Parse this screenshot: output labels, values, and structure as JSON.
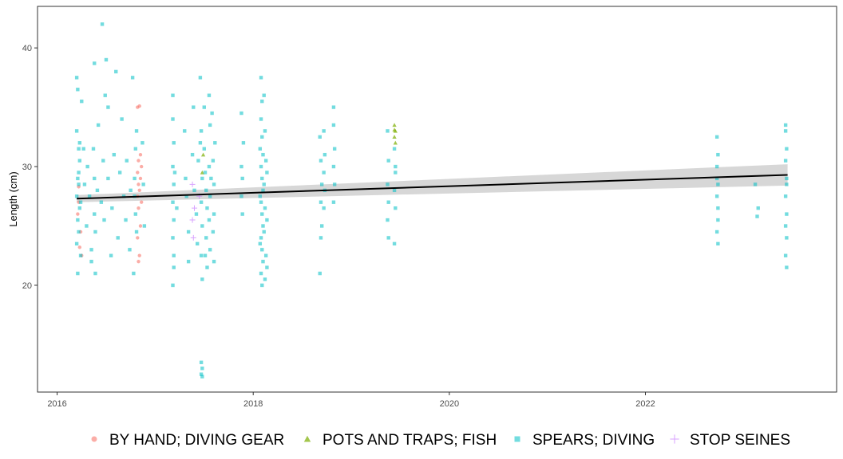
{
  "chart_data": {
    "type": "scatter",
    "title": "",
    "xlabel": "",
    "ylabel": "Length (cm)",
    "xlim": [
      2015.8,
      2023.95
    ],
    "ylim": [
      11.0,
      43.5
    ],
    "x_ticks": [
      2016,
      2018,
      2020,
      2022
    ],
    "y_ticks": [
      20,
      30,
      40
    ],
    "grid": false,
    "legend_position": "bottom",
    "trend": {
      "method": "linear",
      "line_color": "#000000",
      "band_color": "#bdbdbd",
      "x": [
        2016.2,
        2023.45
      ],
      "y": [
        27.3,
        29.3
      ],
      "lower": [
        27.0,
        28.4
      ],
      "upper": [
        27.6,
        30.2
      ]
    },
    "series": [
      {
        "name": "BY HAND; DIVING GEAR",
        "shape": "circle",
        "color": "#F8766D",
        "points": [
          [
            2016.22,
            28.3
          ],
          [
            2016.22,
            27.0
          ],
          [
            2016.24,
            24.5
          ],
          [
            2016.23,
            23.2
          ],
          [
            2016.25,
            22.5
          ],
          [
            2016.21,
            26.0
          ],
          [
            2016.82,
            35.0
          ],
          [
            2016.84,
            35.1
          ],
          [
            2016.83,
            30.5
          ],
          [
            2016.86,
            30.0
          ],
          [
            2016.82,
            29.5
          ],
          [
            2016.85,
            29.0
          ],
          [
            2016.83,
            28.5
          ],
          [
            2016.84,
            28.0
          ],
          [
            2016.82,
            27.5
          ],
          [
            2016.86,
            27.0
          ],
          [
            2016.83,
            26.5
          ],
          [
            2016.85,
            25.0
          ],
          [
            2016.82,
            24.0
          ],
          [
            2016.84,
            22.5
          ],
          [
            2016.83,
            22.0
          ],
          [
            2016.85,
            31.0
          ]
        ]
      },
      {
        "name": "POTS AND TRAPS; FISH",
        "shape": "triangle",
        "color": "#7CAE00",
        "points": [
          [
            2019.44,
            33.5
          ],
          [
            2019.45,
            33.0
          ],
          [
            2019.44,
            32.5
          ],
          [
            2019.45,
            32.0
          ],
          [
            2019.44,
            33.1
          ],
          [
            2017.49,
            31.0
          ],
          [
            2017.48,
            29.5
          ]
        ]
      },
      {
        "name": "SPEARS; DIVING",
        "shape": "square",
        "color": "#00BFC4",
        "points": [
          [
            2016.2,
            37.5
          ],
          [
            2016.21,
            36.5
          ],
          [
            2016.25,
            35.5
          ],
          [
            2016.2,
            33.0
          ],
          [
            2016.22,
            31.5
          ],
          [
            2016.23,
            30.5
          ],
          [
            2016.21,
            29.0
          ],
          [
            2016.22,
            28.5
          ],
          [
            2016.2,
            27.5
          ],
          [
            2016.23,
            26.5
          ],
          [
            2016.21,
            25.5
          ],
          [
            2016.22,
            24.5
          ],
          [
            2016.2,
            23.5
          ],
          [
            2016.24,
            22.5
          ],
          [
            2016.21,
            21.0
          ],
          [
            2016.23,
            32.0
          ],
          [
            2016.22,
            29.5
          ],
          [
            2016.24,
            27.0
          ],
          [
            2016.27,
            31.5
          ],
          [
            2016.28,
            28.5
          ],
          [
            2016.3,
            25.0
          ],
          [
            2016.31,
            30.0
          ],
          [
            2016.33,
            27.5
          ],
          [
            2016.35,
            23.0
          ],
          [
            2016.35,
            22.0
          ],
          [
            2016.37,
            31.5
          ],
          [
            2016.38,
            26.0
          ],
          [
            2016.38,
            29.0
          ],
          [
            2016.38,
            38.7
          ],
          [
            2016.39,
            24.5
          ],
          [
            2016.39,
            21.0
          ],
          [
            2016.41,
            28.0
          ],
          [
            2016.42,
            33.5
          ],
          [
            2016.45,
            27.0
          ],
          [
            2016.46,
            42.0
          ],
          [
            2016.47,
            30.5
          ],
          [
            2016.48,
            25.5
          ],
          [
            2016.49,
            36.0
          ],
          [
            2016.5,
            39.0
          ],
          [
            2016.52,
            29.0
          ],
          [
            2016.52,
            35.0
          ],
          [
            2016.55,
            22.5
          ],
          [
            2016.56,
            26.5
          ],
          [
            2016.58,
            31.0
          ],
          [
            2016.6,
            38.0
          ],
          [
            2016.62,
            24.0
          ],
          [
            2016.64,
            29.5
          ],
          [
            2016.66,
            34.0
          ],
          [
            2016.68,
            27.5
          ],
          [
            2016.7,
            25.5
          ],
          [
            2016.71,
            30.5
          ],
          [
            2016.74,
            23.0
          ],
          [
            2016.75,
            28.0
          ],
          [
            2016.77,
            37.5
          ],
          [
            2016.78,
            21.0
          ],
          [
            2016.8,
            31.5
          ],
          [
            2016.8,
            26.0
          ],
          [
            2016.79,
            29.0
          ],
          [
            2016.81,
            33.0
          ],
          [
            2016.81,
            24.5
          ],
          [
            2016.79,
            27.5
          ],
          [
            2016.87,
            32.0
          ],
          [
            2016.88,
            28.5
          ],
          [
            2016.89,
            25.0
          ],
          [
            2017.18,
            36.0
          ],
          [
            2017.18,
            34.0
          ],
          [
            2017.19,
            32.0
          ],
          [
            2017.18,
            30.0
          ],
          [
            2017.19,
            28.5
          ],
          [
            2017.18,
            27.0
          ],
          [
            2017.19,
            25.5
          ],
          [
            2017.18,
            24.0
          ],
          [
            2017.19,
            22.5
          ],
          [
            2017.18,
            20.0
          ],
          [
            2017.19,
            21.5
          ],
          [
            2017.2,
            29.5
          ],
          [
            2017.22,
            26.5
          ],
          [
            2017.3,
            33.0
          ],
          [
            2017.31,
            29.0
          ],
          [
            2017.32,
            27.5
          ],
          [
            2017.34,
            24.5
          ],
          [
            2017.34,
            22.0
          ],
          [
            2017.38,
            31.0
          ],
          [
            2017.39,
            35.0
          ],
          [
            2017.4,
            28.0
          ],
          [
            2017.42,
            26.0
          ],
          [
            2017.43,
            23.5
          ],
          [
            2017.44,
            30.5
          ],
          [
            2017.46,
            37.5
          ],
          [
            2017.47,
            33.0
          ],
          [
            2017.48,
            29.0
          ],
          [
            2017.47,
            27.0
          ],
          [
            2017.48,
            25.0
          ],
          [
            2017.47,
            22.5
          ],
          [
            2017.48,
            20.5
          ],
          [
            2017.47,
            13.5
          ],
          [
            2017.48,
            13.0
          ],
          [
            2017.47,
            12.5
          ],
          [
            2017.48,
            12.3
          ],
          [
            2017.46,
            32.0
          ],
          [
            2017.5,
            35.0
          ],
          [
            2017.5,
            31.5
          ],
          [
            2017.51,
            29.5
          ],
          [
            2017.52,
            28.0
          ],
          [
            2017.53,
            26.5
          ],
          [
            2017.52,
            24.0
          ],
          [
            2017.51,
            22.5
          ],
          [
            2017.55,
            36.0
          ],
          [
            2017.56,
            33.5
          ],
          [
            2017.55,
            30.0
          ],
          [
            2017.56,
            27.5
          ],
          [
            2017.55,
            25.5
          ],
          [
            2017.56,
            23.0
          ],
          [
            2017.58,
            34.5
          ],
          [
            2017.59,
            30.5
          ],
          [
            2017.6,
            28.5
          ],
          [
            2017.6,
            26.0
          ],
          [
            2017.59,
            24.5
          ],
          [
            2017.61,
            32.0
          ],
          [
            2017.6,
            22.0
          ],
          [
            2017.53,
            21.5
          ],
          [
            2017.57,
            29.0
          ],
          [
            2017.88,
            34.5
          ],
          [
            2017.88,
            30.0
          ],
          [
            2017.89,
            29.0
          ],
          [
            2017.88,
            27.5
          ],
          [
            2017.89,
            26.0
          ],
          [
            2017.9,
            32.0
          ],
          [
            2018.08,
            37.5
          ],
          [
            2018.09,
            35.5
          ],
          [
            2018.08,
            34.0
          ],
          [
            2018.09,
            32.5
          ],
          [
            2018.1,
            31.0
          ],
          [
            2018.08,
            30.0
          ],
          [
            2018.09,
            29.0
          ],
          [
            2018.1,
            28.0
          ],
          [
            2018.08,
            27.0
          ],
          [
            2018.09,
            26.0
          ],
          [
            2018.1,
            25.0
          ],
          [
            2018.08,
            24.0
          ],
          [
            2018.09,
            23.0
          ],
          [
            2018.1,
            22.0
          ],
          [
            2018.08,
            21.0
          ],
          [
            2018.09,
            20.0
          ],
          [
            2018.11,
            36.0
          ],
          [
            2018.11,
            28.5
          ],
          [
            2018.11,
            24.5
          ],
          [
            2018.12,
            33.0
          ],
          [
            2018.12,
            26.5
          ],
          [
            2018.12,
            20.5
          ],
          [
            2018.13,
            30.5
          ],
          [
            2018.13,
            22.5
          ],
          [
            2018.07,
            31.5
          ],
          [
            2018.07,
            27.5
          ],
          [
            2018.07,
            23.5
          ],
          [
            2018.14,
            29.5
          ],
          [
            2018.14,
            25.5
          ],
          [
            2018.14,
            21.5
          ],
          [
            2018.68,
            32.5
          ],
          [
            2018.69,
            30.5
          ],
          [
            2018.7,
            28.5
          ],
          [
            2018.69,
            27.0
          ],
          [
            2018.7,
            25.0
          ],
          [
            2018.69,
            24.0
          ],
          [
            2018.68,
            21.0
          ],
          [
            2018.72,
            33.0
          ],
          [
            2018.73,
            31.0
          ],
          [
            2018.72,
            29.5
          ],
          [
            2018.73,
            28.0
          ],
          [
            2018.72,
            26.5
          ],
          [
            2018.82,
            35.0
          ],
          [
            2018.82,
            33.5
          ],
          [
            2018.83,
            31.5
          ],
          [
            2018.82,
            30.0
          ],
          [
            2018.83,
            28.5
          ],
          [
            2018.82,
            27.0
          ],
          [
            2019.37,
            33.0
          ],
          [
            2019.38,
            30.5
          ],
          [
            2019.37,
            28.5
          ],
          [
            2019.38,
            27.0
          ],
          [
            2019.37,
            25.5
          ],
          [
            2019.38,
            24.0
          ],
          [
            2019.44,
            31.5
          ],
          [
            2019.45,
            30.0
          ],
          [
            2019.44,
            28.0
          ],
          [
            2019.45,
            26.5
          ],
          [
            2019.44,
            23.5
          ],
          [
            2019.45,
            29.5
          ],
          [
            2022.73,
            32.5
          ],
          [
            2022.74,
            31.0
          ],
          [
            2022.73,
            30.0
          ],
          [
            2022.74,
            28.5
          ],
          [
            2022.73,
            27.5
          ],
          [
            2022.74,
            25.5
          ],
          [
            2022.73,
            24.5
          ],
          [
            2022.74,
            23.5
          ],
          [
            2022.73,
            29.0
          ],
          [
            2022.74,
            26.5
          ],
          [
            2023.12,
            28.5
          ],
          [
            2023.15,
            26.5
          ],
          [
            2023.14,
            25.8
          ],
          [
            2023.43,
            33.0
          ],
          [
            2023.44,
            31.5
          ],
          [
            2023.43,
            30.5
          ],
          [
            2023.44,
            29.0
          ],
          [
            2023.43,
            27.5
          ],
          [
            2023.44,
            26.0
          ],
          [
            2023.43,
            25.0
          ],
          [
            2023.44,
            24.0
          ],
          [
            2023.43,
            22.5
          ],
          [
            2023.44,
            21.5
          ],
          [
            2023.43,
            33.5
          ],
          [
            2023.44,
            28.5
          ]
        ]
      },
      {
        "name": "STOP SEINES",
        "shape": "plus",
        "color": "#C77CFF",
        "points": [
          [
            2017.38,
            28.5
          ],
          [
            2017.4,
            26.5
          ],
          [
            2017.38,
            25.5
          ],
          [
            2017.39,
            24.0
          ],
          [
            2017.45,
            27.5
          ]
        ]
      }
    ]
  }
}
